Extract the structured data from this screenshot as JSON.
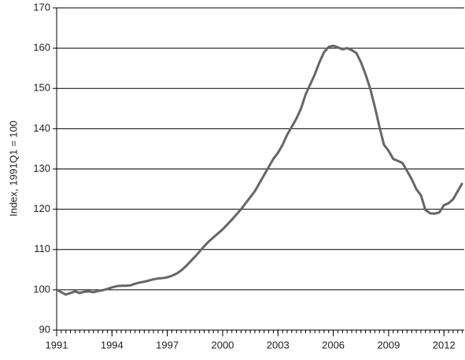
{
  "chart_data": {
    "type": "line",
    "ylabel": "Index, 1991Q1 = 100",
    "x": [
      1991,
      1991.25,
      1991.5,
      1991.75,
      1992,
      1992.25,
      1992.5,
      1992.75,
      1993,
      1993.25,
      1993.5,
      1993.75,
      1994,
      1994.25,
      1994.5,
      1994.75,
      1995,
      1995.25,
      1995.5,
      1995.75,
      1996,
      1996.25,
      1996.5,
      1996.75,
      1997,
      1997.25,
      1997.5,
      1997.75,
      1998,
      1998.25,
      1998.5,
      1998.75,
      1999,
      1999.25,
      1999.5,
      1999.75,
      2000,
      2000.25,
      2000.5,
      2000.75,
      2001,
      2001.25,
      2001.5,
      2001.75,
      2002,
      2002.25,
      2002.5,
      2002.75,
      2003,
      2003.25,
      2003.5,
      2003.75,
      2004,
      2004.25,
      2004.5,
      2004.75,
      2005,
      2005.25,
      2005.5,
      2005.75,
      2006,
      2006.25,
      2006.5,
      2006.75,
      2007,
      2007.25,
      2007.5,
      2007.75,
      2008,
      2008.25,
      2008.5,
      2008.75,
      2009,
      2009.25,
      2009.5,
      2009.75,
      2010,
      2010.25,
      2010.5,
      2010.75,
      2011,
      2011.25,
      2011.5,
      2011.75,
      2012,
      2012.25,
      2012.5,
      2012.75,
      2013
    ],
    "series": [
      {
        "color": "#666666",
        "values": [
          100,
          99.4,
          98.8,
          99.2,
          99.6,
          99.2,
          99.5,
          99.6,
          99.4,
          99.7,
          99.9,
          100.2,
          100.6,
          100.9,
          101.0,
          101.0,
          101.1,
          101.5,
          101.8,
          102.0,
          102.3,
          102.6,
          102.8,
          102.9,
          103.1,
          103.5,
          104.0,
          104.8,
          105.8,
          107.0,
          108.2,
          109.5,
          110.8,
          112.0,
          113.0,
          114.0,
          115.0,
          116.2,
          117.4,
          118.7,
          120.0,
          121.5,
          123.0,
          124.5,
          126.5,
          128.5,
          130.5,
          132.5,
          134.0,
          136.0,
          138.5,
          140.5,
          142.5,
          145.0,
          148.5,
          151.0,
          153.5,
          156.5,
          159.0,
          160.3,
          160.6,
          160.2,
          159.7,
          160.0,
          159.5,
          158.8,
          156.5,
          153.5,
          150.0,
          145.5,
          140.5,
          136.0,
          134.5,
          132.5,
          132.0,
          131.5,
          129.5,
          127.5,
          125.0,
          123.5,
          119.8,
          119.0,
          118.9,
          119.2,
          121.0,
          121.5,
          122.5,
          124.5,
          126.5
        ]
      }
    ],
    "xlim": [
      1991,
      2013.1
    ],
    "xticks": [
      1991,
      1994,
      1997,
      2000,
      2003,
      2006,
      2009,
      2012
    ],
    "ylim": [
      90,
      170
    ],
    "yticks": [
      90,
      100,
      110,
      120,
      130,
      140,
      150,
      160,
      170
    ],
    "grid": true
  }
}
